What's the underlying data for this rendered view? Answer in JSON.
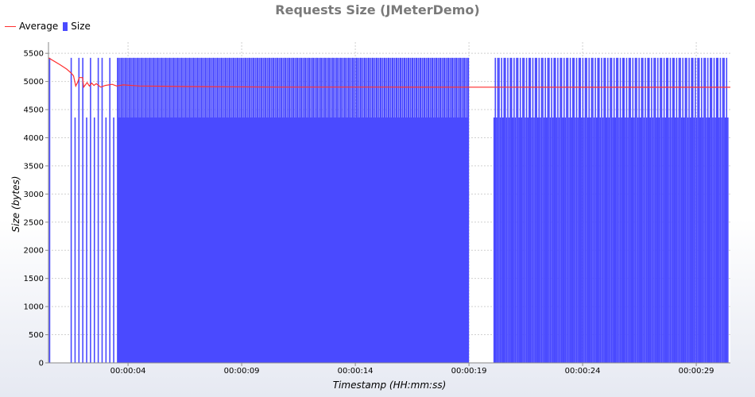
{
  "chart_data": {
    "type": "bar",
    "title": "Requests Size (JMeterDemo)",
    "xlabel": "Timestamp (HH:mm:ss)",
    "ylabel": "Size (bytes)",
    "ylim": [
      0,
      5700
    ],
    "yticks": [
      0,
      500,
      1000,
      1500,
      2000,
      2500,
      3000,
      3500,
      4000,
      4500,
      5000,
      5500
    ],
    "xrange_seconds": [
      0,
      30
    ],
    "xticks": [
      {
        "t": 3.5,
        "label": "00:00:04"
      },
      {
        "t": 8.5,
        "label": "00:00:09"
      },
      {
        "t": 13.5,
        "label": "00:00:14"
      },
      {
        "t": 18.5,
        "label": "00:00:19"
      },
      {
        "t": 23.5,
        "label": "00:00:24"
      },
      {
        "t": 28.5,
        "label": "00:00:29"
      }
    ],
    "grid": true,
    "legend_position": "top-left",
    "series": [
      {
        "name": "Average",
        "type": "line",
        "color": "#ff3030",
        "points": [
          [
            0.0,
            5420
          ],
          [
            0.5,
            5300
          ],
          [
            0.8,
            5220
          ],
          [
            1.0,
            5150
          ],
          [
            1.1,
            5100
          ],
          [
            1.2,
            4920
          ],
          [
            1.3,
            5000
          ],
          [
            1.35,
            5070
          ],
          [
            1.5,
            5070
          ],
          [
            1.55,
            4900
          ],
          [
            1.7,
            4980
          ],
          [
            1.8,
            4920
          ],
          [
            1.9,
            4970
          ],
          [
            2.0,
            4930
          ],
          [
            2.1,
            4960
          ],
          [
            2.3,
            4900
          ],
          [
            2.5,
            4930
          ],
          [
            2.8,
            4950
          ],
          [
            3.0,
            4920
          ],
          [
            3.3,
            4940
          ],
          [
            4.0,
            4920
          ],
          [
            5.0,
            4915
          ],
          [
            6.0,
            4910
          ],
          [
            8.0,
            4905
          ],
          [
            10.0,
            4900
          ],
          [
            15.0,
            4900
          ],
          [
            20.0,
            4898
          ],
          [
            25.0,
            4897
          ],
          [
            30.0,
            4897
          ]
        ]
      },
      {
        "name": "Size",
        "type": "bar",
        "color": "#4a4aff",
        "values_cycle": [
          5420,
          4360,
          5420,
          5420,
          4360
        ],
        "gaps": [
          [
            18.5,
            19.6
          ]
        ]
      }
    ]
  }
}
